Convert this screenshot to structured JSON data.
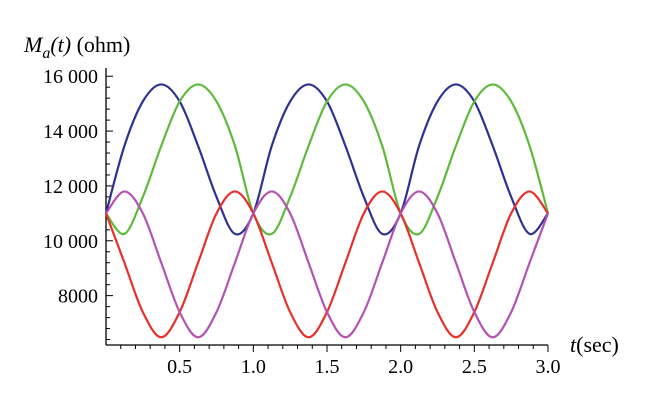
{
  "chart_data": {
    "type": "line",
    "title": "",
    "ylabel": {
      "symbol": "M",
      "subscript": "a",
      "arg": "(t)",
      "unit": " (ohm)"
    },
    "xlabel": {
      "symbol": "t",
      "unit": "(sec)"
    },
    "xlim": [
      0,
      3.0
    ],
    "ylim": [
      6200,
      16300
    ],
    "x_ticks_major": [
      0.5,
      1.0,
      1.5,
      2.0,
      2.5,
      3.0
    ],
    "x_tick_labels": [
      "0.5",
      "1.0",
      "1.5",
      "2.0",
      "2.5",
      "3.0"
    ],
    "y_ticks_major": [
      8000,
      10000,
      12000,
      14000,
      16000
    ],
    "y_tick_labels": [
      "8000",
      "10 000",
      "12 000",
      "14 000",
      "16 000"
    ],
    "grid": false,
    "legend": "none",
    "x": [
      0.0,
      0.125,
      0.25,
      0.375,
      0.5,
      0.625,
      0.75,
      0.875,
      1.0,
      1.125,
      1.25,
      1.375,
      1.5,
      1.625,
      1.75,
      1.875,
      2.0,
      2.125,
      2.25,
      2.375,
      2.5,
      2.625,
      2.75,
      2.875,
      3.0
    ],
    "series": [
      {
        "color": "#2e3192",
        "values": [
          11000,
          13460,
          15080,
          15700,
          15080,
          13460,
          11600,
          10250,
          11000,
          13460,
          15080,
          15700,
          15080,
          13460,
          11600,
          10250,
          11000,
          13460,
          15080,
          15700,
          15080,
          13460,
          11600,
          10250,
          11000
        ]
      },
      {
        "color": "#5dbb3c",
        "values": [
          11000,
          10250,
          11600,
          13460,
          15080,
          15700,
          15080,
          13460,
          11000,
          10250,
          11600,
          13460,
          15080,
          15700,
          15080,
          13460,
          11000,
          10250,
          11600,
          13460,
          15080,
          15700,
          15080,
          13460,
          11000
        ]
      },
      {
        "color": "#e8302a",
        "values": [
          11000,
          9200,
          7400,
          6480,
          7400,
          9200,
          11000,
          11800,
          11000,
          9200,
          7400,
          6480,
          7400,
          9200,
          11000,
          11800,
          11000,
          9200,
          7400,
          6480,
          7400,
          9200,
          11000,
          11800,
          11000
        ]
      },
      {
        "color": "#b452b4",
        "values": [
          11000,
          11800,
          11000,
          9200,
          7400,
          6480,
          7400,
          9200,
          11000,
          11800,
          11000,
          9200,
          7400,
          6480,
          7400,
          9200,
          11000,
          11800,
          11000,
          9200,
          7400,
          6480,
          7400,
          9200,
          11000
        ]
      }
    ]
  }
}
